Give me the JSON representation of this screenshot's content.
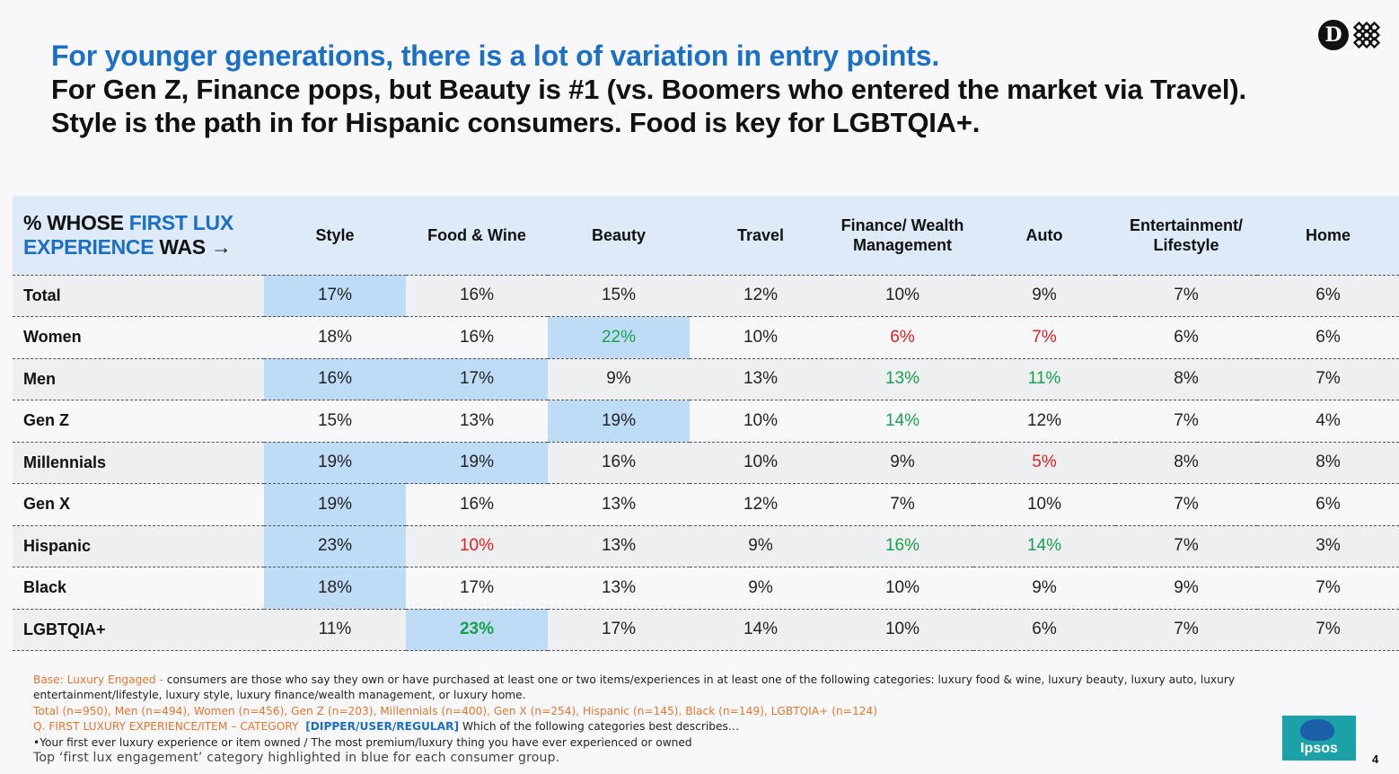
{
  "title": {
    "line1": "For younger generations, there is a lot of variation in entry points.",
    "line2": "For Gen Z, Finance pops, but Beauty is #1 (vs. Boomers who entered the market via Travel).",
    "line3": "Style is the path in for Hispanic consumers. Food is key for LGBTQIA+."
  },
  "logo": {
    "letter": "D"
  },
  "table": {
    "corner": {
      "part1": "% WHOSE ",
      "part2": "FIRST LUX",
      "part3": "EXPERIENCE",
      "part4": " WAS →"
    },
    "columns": [
      {
        "line1": "Style",
        "line2": ""
      },
      {
        "line1": "Food & Wine",
        "line2": ""
      },
      {
        "line1": "Beauty",
        "line2": ""
      },
      {
        "line1": "Travel",
        "line2": ""
      },
      {
        "line1": "Finance/ Wealth",
        "line2": "Management"
      },
      {
        "line1": "Auto",
        "line2": ""
      },
      {
        "line1": "Entertainment/",
        "line2": "Lifestyle"
      },
      {
        "line1": "Home",
        "line2": ""
      }
    ],
    "rows": [
      {
        "label": "Total",
        "cells": [
          {
            "v": "17%",
            "hi": true,
            "c": ""
          },
          {
            "v": "16%",
            "hi": false,
            "c": ""
          },
          {
            "v": "15%",
            "hi": false,
            "c": ""
          },
          {
            "v": "12%",
            "hi": false,
            "c": ""
          },
          {
            "v": "10%",
            "hi": false,
            "c": ""
          },
          {
            "v": "9%",
            "hi": false,
            "c": ""
          },
          {
            "v": "7%",
            "hi": false,
            "c": ""
          },
          {
            "v": "6%",
            "hi": false,
            "c": ""
          }
        ]
      },
      {
        "label": "Women",
        "cells": [
          {
            "v": "18%",
            "hi": false,
            "c": ""
          },
          {
            "v": "16%",
            "hi": false,
            "c": ""
          },
          {
            "v": "22%",
            "hi": true,
            "c": "pos"
          },
          {
            "v": "10%",
            "hi": false,
            "c": ""
          },
          {
            "v": "6%",
            "hi": false,
            "c": "neg"
          },
          {
            "v": "7%",
            "hi": false,
            "c": "neg"
          },
          {
            "v": "6%",
            "hi": false,
            "c": ""
          },
          {
            "v": "6%",
            "hi": false,
            "c": ""
          }
        ]
      },
      {
        "label": "Men",
        "cells": [
          {
            "v": "16%",
            "hi": true,
            "c": ""
          },
          {
            "v": "17%",
            "hi": true,
            "c": ""
          },
          {
            "v": "9%",
            "hi": false,
            "c": ""
          },
          {
            "v": "13%",
            "hi": false,
            "c": ""
          },
          {
            "v": "13%",
            "hi": false,
            "c": "pos"
          },
          {
            "v": "11%",
            "hi": false,
            "c": "pos"
          },
          {
            "v": "8%",
            "hi": false,
            "c": ""
          },
          {
            "v": "7%",
            "hi": false,
            "c": ""
          }
        ]
      },
      {
        "label": "Gen Z",
        "cells": [
          {
            "v": "15%",
            "hi": false,
            "c": ""
          },
          {
            "v": "13%",
            "hi": false,
            "c": ""
          },
          {
            "v": "19%",
            "hi": true,
            "c": ""
          },
          {
            "v": "10%",
            "hi": false,
            "c": ""
          },
          {
            "v": "14%",
            "hi": false,
            "c": "pos"
          },
          {
            "v": "12%",
            "hi": false,
            "c": ""
          },
          {
            "v": "7%",
            "hi": false,
            "c": ""
          },
          {
            "v": "4%",
            "hi": false,
            "c": ""
          }
        ]
      },
      {
        "label": "Millennials",
        "cells": [
          {
            "v": "19%",
            "hi": true,
            "c": ""
          },
          {
            "v": "19%",
            "hi": true,
            "c": ""
          },
          {
            "v": "16%",
            "hi": false,
            "c": ""
          },
          {
            "v": "10%",
            "hi": false,
            "c": ""
          },
          {
            "v": "9%",
            "hi": false,
            "c": ""
          },
          {
            "v": "5%",
            "hi": false,
            "c": "neg"
          },
          {
            "v": "8%",
            "hi": false,
            "c": ""
          },
          {
            "v": "8%",
            "hi": false,
            "c": ""
          }
        ]
      },
      {
        "label": "Gen X",
        "cells": [
          {
            "v": "19%",
            "hi": true,
            "c": ""
          },
          {
            "v": "16%",
            "hi": false,
            "c": ""
          },
          {
            "v": "13%",
            "hi": false,
            "c": ""
          },
          {
            "v": "12%",
            "hi": false,
            "c": ""
          },
          {
            "v": "7%",
            "hi": false,
            "c": ""
          },
          {
            "v": "10%",
            "hi": false,
            "c": ""
          },
          {
            "v": "7%",
            "hi": false,
            "c": ""
          },
          {
            "v": "6%",
            "hi": false,
            "c": ""
          }
        ]
      },
      {
        "label": "Hispanic",
        "cells": [
          {
            "v": "23%",
            "hi": true,
            "c": ""
          },
          {
            "v": "10%",
            "hi": false,
            "c": "neg"
          },
          {
            "v": "13%",
            "hi": false,
            "c": ""
          },
          {
            "v": "9%",
            "hi": false,
            "c": ""
          },
          {
            "v": "16%",
            "hi": false,
            "c": "pos"
          },
          {
            "v": "14%",
            "hi": false,
            "c": "pos"
          },
          {
            "v": "7%",
            "hi": false,
            "c": ""
          },
          {
            "v": "3%",
            "hi": false,
            "c": ""
          }
        ]
      },
      {
        "label": "Black",
        "cells": [
          {
            "v": "18%",
            "hi": true,
            "c": ""
          },
          {
            "v": "17%",
            "hi": false,
            "c": ""
          },
          {
            "v": "13%",
            "hi": false,
            "c": ""
          },
          {
            "v": "9%",
            "hi": false,
            "c": ""
          },
          {
            "v": "10%",
            "hi": false,
            "c": ""
          },
          {
            "v": "9%",
            "hi": false,
            "c": ""
          },
          {
            "v": "9%",
            "hi": false,
            "c": ""
          },
          {
            "v": "7%",
            "hi": false,
            "c": ""
          }
        ]
      },
      {
        "label": "LGBTQIA+",
        "cells": [
          {
            "v": "11%",
            "hi": false,
            "c": ""
          },
          {
            "v": "23%",
            "hi": true,
            "c": "pos bold"
          },
          {
            "v": "17%",
            "hi": false,
            "c": ""
          },
          {
            "v": "14%",
            "hi": false,
            "c": ""
          },
          {
            "v": "10%",
            "hi": false,
            "c": ""
          },
          {
            "v": "6%",
            "hi": false,
            "c": ""
          },
          {
            "v": "7%",
            "hi": false,
            "c": ""
          },
          {
            "v": "7%",
            "hi": false,
            "c": ""
          }
        ]
      }
    ]
  },
  "footnotes": {
    "base_label": "Base: Luxury Engaged -",
    "base_text": " consumers are those who say they own or have purchased at least one or two items/experiences in at least one of the following categories: luxury food & wine, luxury beauty, luxury auto, luxury entertainment/lifestyle, luxury style, luxury finance/wealth management, or luxury home.",
    "sample_sizes": "Total (n=950), Men (n=494), Women (n=456), Gen Z (n=203), Millennials (n=400), Gen X (n=254), Hispanic (n=145), Black (n=149), LGBTQIA+ (n=124)",
    "question_label": "Q. FIRST LUXURY EXPERIENCE/ITEM – CATEGORY",
    "question_tag": "[DIPPER/USER/REGULAR]",
    "question_text": " Which of the following categories best describes…",
    "question_options": "•Your first ever luxury experience or item owned  / The most premium/luxury thing you have ever experienced or owned",
    "highlight_note": "Top ‘first lux engagement’ category highlighted in blue for each consumer group."
  },
  "brand": {
    "ipsos": "Ipsos"
  },
  "page_number": "4",
  "colors": {
    "accent_blue": "#1a6fc6",
    "highlight": "#bfdcf7",
    "positive": "#19a04b",
    "negative": "#e02020"
  }
}
